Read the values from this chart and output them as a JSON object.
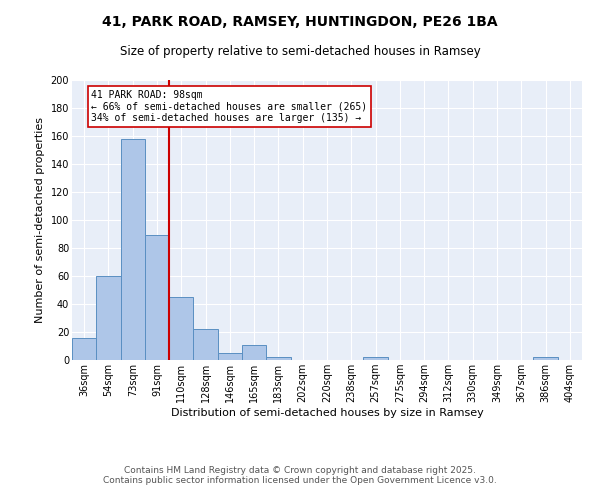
{
  "title_line1": "41, PARK ROAD, RAMSEY, HUNTINGDON, PE26 1BA",
  "title_line2": "Size of property relative to semi-detached houses in Ramsey",
  "xlabel": "Distribution of semi-detached houses by size in Ramsey",
  "ylabel": "Number of semi-detached properties",
  "categories": [
    "36sqm",
    "54sqm",
    "73sqm",
    "91sqm",
    "110sqm",
    "128sqm",
    "146sqm",
    "165sqm",
    "183sqm",
    "202sqm",
    "220sqm",
    "238sqm",
    "257sqm",
    "275sqm",
    "294sqm",
    "312sqm",
    "330sqm",
    "349sqm",
    "367sqm",
    "386sqm",
    "404sqm"
  ],
  "values": [
    16,
    60,
    158,
    89,
    45,
    22,
    5,
    11,
    2,
    0,
    0,
    0,
    2,
    0,
    0,
    0,
    0,
    0,
    0,
    2,
    0
  ],
  "bar_color": "#aec6e8",
  "bar_edge_color": "#5a8fc2",
  "vline_color": "#cc0000",
  "annotation_title": "41 PARK ROAD: 98sqm",
  "annotation_line2": "← 66% of semi-detached houses are smaller (265)",
  "annotation_line3": "34% of semi-detached houses are larger (135) →",
  "annotation_box_color": "#ffffff",
  "annotation_box_edge": "#cc0000",
  "ylim": [
    0,
    200
  ],
  "yticks": [
    0,
    20,
    40,
    60,
    80,
    100,
    120,
    140,
    160,
    180,
    200
  ],
  "background_color": "#e8eef8",
  "footer_line1": "Contains HM Land Registry data © Crown copyright and database right 2025.",
  "footer_line2": "Contains public sector information licensed under the Open Government Licence v3.0.",
  "title_fontsize": 10,
  "subtitle_fontsize": 8.5,
  "axis_label_fontsize": 8,
  "tick_fontsize": 7,
  "annotation_fontsize": 7,
  "footer_fontsize": 6.5
}
